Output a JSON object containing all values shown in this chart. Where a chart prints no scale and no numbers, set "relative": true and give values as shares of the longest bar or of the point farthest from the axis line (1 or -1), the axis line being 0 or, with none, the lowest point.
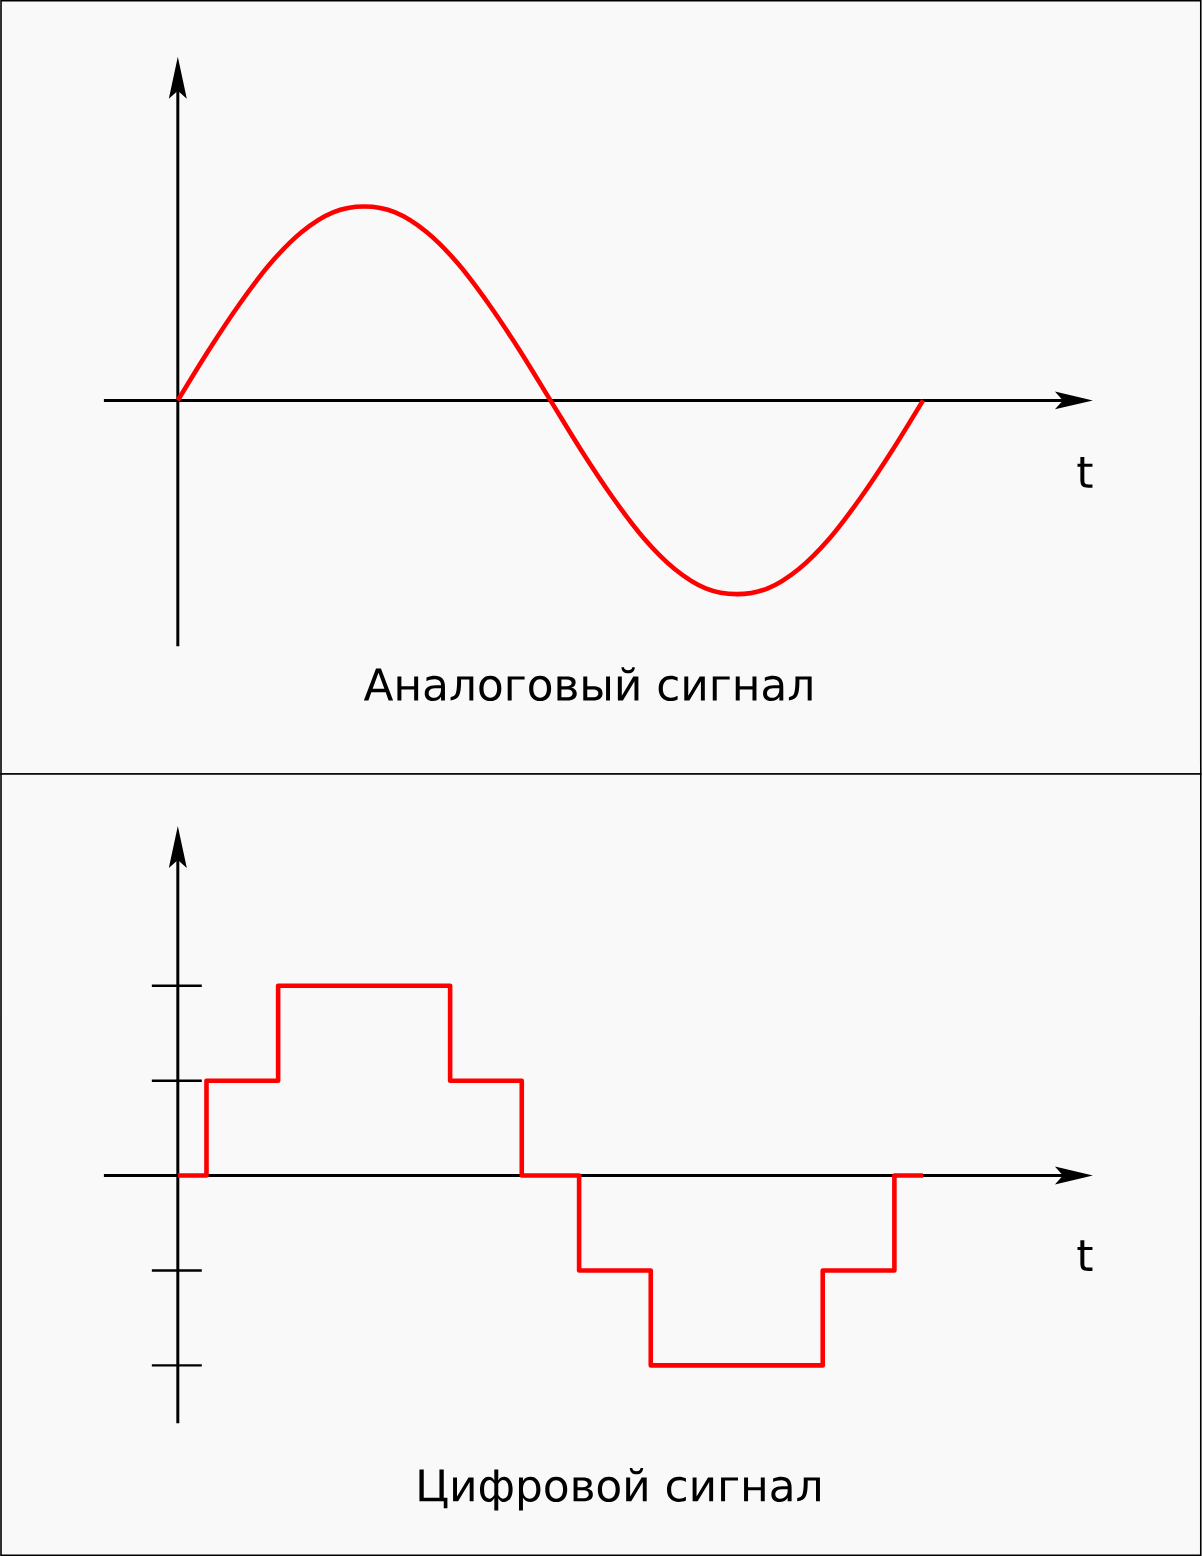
{
  "chart_data": [
    {
      "type": "line",
      "title": "Аналоговый сигнал",
      "xlabel": "t",
      "relative": true,
      "color": "#ff0000",
      "categories": [
        null,
        null,
        null,
        null,
        null,
        null,
        null,
        null,
        null,
        null,
        null,
        null,
        null,
        null,
        null,
        null,
        null,
        null,
        null,
        null,
        null,
        null,
        null,
        null,
        null
      ],
      "values": [
        0,
        0.26,
        0.5,
        0.71,
        0.87,
        0.97,
        1,
        0.97,
        0.87,
        0.71,
        0.5,
        0.26,
        0,
        -0.26,
        -0.5,
        -0.71,
        -0.87,
        -0.97,
        -1,
        -0.97,
        -0.87,
        -0.71,
        -0.5,
        -0.26,
        0
      ]
    },
    {
      "type": "step",
      "title": "Цифровой сигнал",
      "xlabel": "t",
      "relative": true,
      "color": "#ff0000",
      "categories": [
        null,
        null,
        null,
        null,
        null,
        null,
        null,
        null,
        null,
        null,
        null,
        null,
        null,
        null,
        null,
        null,
        null,
        null,
        null,
        null,
        null,
        null,
        null,
        null,
        null,
        null,
        null,
        null,
        null,
        null,
        null,
        null,
        null,
        null,
        null,
        null,
        null,
        null,
        null,
        null,
        null,
        null,
        null,
        null,
        null,
        null,
        null,
        null,
        null,
        null,
        null,
        null,
        null
      ],
      "values": [
        0,
        0,
        0.5,
        0.5,
        0.5,
        0.5,
        0.5,
        1,
        1,
        1,
        1,
        1,
        1,
        1,
        1,
        1,
        1,
        1,
        1,
        0.5,
        0.5,
        0.5,
        0.5,
        0.5,
        0,
        0,
        0,
        0,
        -0.5,
        -0.5,
        -0.5,
        -0.5,
        -0.5,
        -1,
        -1,
        -1,
        -1,
        -1,
        -1,
        -1,
        -1,
        -1,
        -1,
        -1,
        -1,
        -0.5,
        -0.5,
        -0.5,
        -0.5,
        -0.5,
        0,
        0,
        0
      ]
    }
  ]
}
